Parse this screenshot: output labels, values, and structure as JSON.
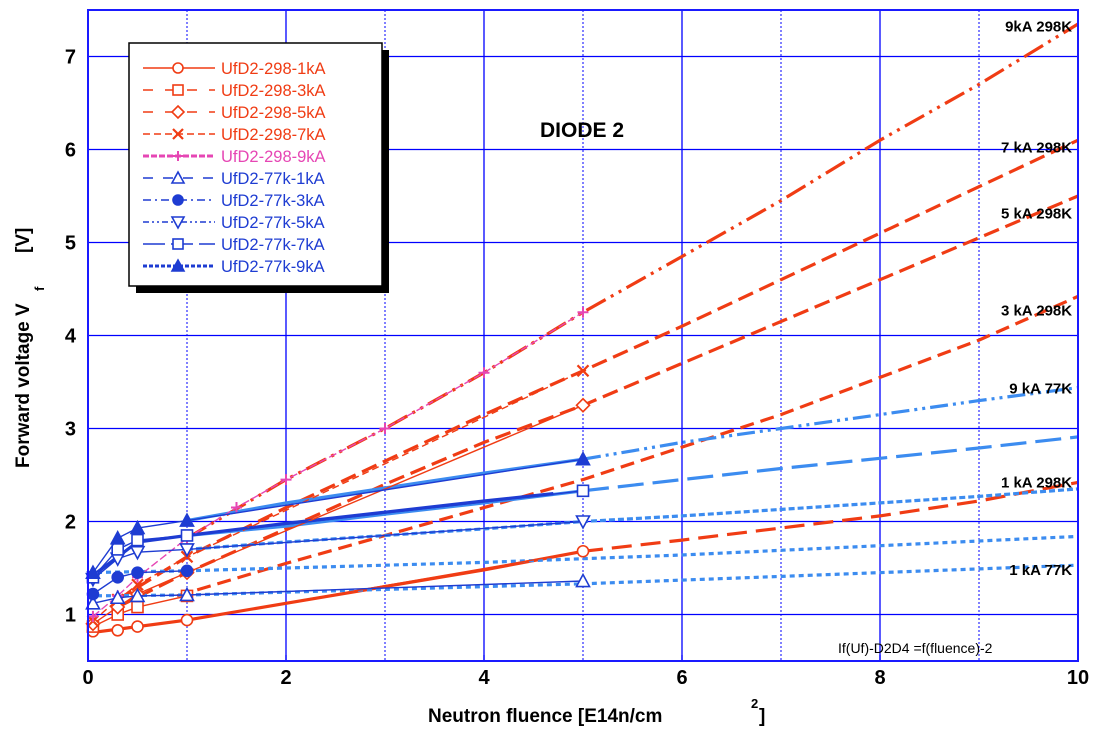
{
  "chart_data": {
    "type": "line",
    "title": "DIODE  2",
    "xlabel": "Neutron fluence [E14n/cm",
    "xlabel_sup": "2",
    "xlabel_end": "]",
    "ylabel": "Forward voltage V",
    "ylabel_sub": "f",
    "ylabel_end": "[V]",
    "xlim": [
      0,
      10
    ],
    "ylim": [
      0.5,
      7.5
    ],
    "grid": true,
    "legend_position": "top-left",
    "xticks": [
      "0",
      "2",
      "4",
      "6",
      "8",
      "10"
    ],
    "yticks": [
      "1",
      "2",
      "3",
      "4",
      "5",
      "6",
      "7"
    ],
    "note": "If(Uf)-D2D4 =f(fluence)-2",
    "colors": {
      "red": "#f03c14",
      "blue": "#1e3cd2",
      "light_blue": "#3c8cf0",
      "pink": "#e646b4",
      "grid": "#0000ff"
    },
    "annotations": [
      {
        "text": "9kA  298K",
        "x": 9.9,
        "y": 7.32
      },
      {
        "text": "7  kA  298K",
        "x": 9.9,
        "y": 6.02
      },
      {
        "text": "5  kA  298K",
        "x": 9.9,
        "y": 5.31
      },
      {
        "text": "3  kA  298K",
        "x": 9.9,
        "y": 4.27
      },
      {
        "text": "9  kA  77K",
        "x": 9.9,
        "y": 3.43
      },
      {
        "text": "1  kA  298K",
        "x": 9.9,
        "y": 2.42
      },
      {
        "text": "1  kA  77K",
        "x": 9.9,
        "y": 1.48
      }
    ],
    "series": [
      {
        "name": "UfD2-298-1kA",
        "color": "#f03c14",
        "marker": "circle",
        "fill": false,
        "dash": "",
        "legend_dash": "",
        "x": [
          0.05,
          0.3,
          0.5,
          1.0,
          5.0
        ],
        "y": [
          0.82,
          0.83,
          0.87,
          0.94,
          1.68
        ]
      },
      {
        "name": "UfD2-298-3kA",
        "color": "#f03c14",
        "marker": "square",
        "fill": false,
        "dash": "",
        "legend_dash": "10,12",
        "x": [
          0.05,
          0.3,
          0.5,
          1.0
        ],
        "y": [
          0.87,
          1.0,
          1.08,
          1.2
        ]
      },
      {
        "name": "UfD2-298-5kA",
        "color": "#f03c14",
        "marker": "diamond",
        "fill": false,
        "dash": "",
        "legend_dash": "10,12",
        "x": [
          0.05,
          0.3,
          0.5,
          1.0,
          5.0
        ],
        "y": [
          0.9,
          1.08,
          1.22,
          1.45,
          3.25
        ]
      },
      {
        "name": "UfD2-298-7kA",
        "color": "#f03c14",
        "marker": "x",
        "fill": false,
        "dash": "7,4",
        "legend_dash": "7,4",
        "x": [
          0.05,
          0.3,
          0.5,
          1.0,
          5.0
        ],
        "y": [
          0.93,
          1.16,
          1.32,
          1.62,
          3.62
        ]
      },
      {
        "name": "UfD2-298-9kA",
        "color": "#e646b4",
        "marker": "plus",
        "fill": false,
        "dash": "8,3",
        "legend_dash": "6,2",
        "x": [
          0.05,
          0.3,
          0.5,
          1.0,
          1.5,
          2.0,
          3.0,
          4.0,
          5.0
        ],
        "y": [
          0.98,
          1.2,
          1.4,
          1.82,
          2.15,
          2.45,
          3.0,
          3.6,
          4.25
        ]
      },
      {
        "name": "UfD2-77k-1kA",
        "color": "#1e3cd2",
        "marker": "triangle",
        "fill": false,
        "dash": "",
        "legend_dash": "10,10",
        "x": [
          0.05,
          0.3,
          0.5,
          1.0,
          5.0
        ],
        "y": [
          1.12,
          1.18,
          1.2,
          1.21,
          1.36
        ]
      },
      {
        "name": "UfD2-77k-3kA",
        "color": "#1e3cd2",
        "marker": "circle",
        "fill": true,
        "dash": "",
        "legend_dash": "8,4,2,4",
        "x": [
          0.05,
          0.3,
          0.5,
          1.0
        ],
        "y": [
          1.22,
          1.4,
          1.45,
          1.47
        ]
      },
      {
        "name": "UfD2-77k-5kA",
        "color": "#1e3cd2",
        "marker": "triangle-down",
        "fill": false,
        "dash": "",
        "legend_dash": "6,3,2,3,2,3",
        "x": [
          0.05,
          0.3,
          0.5,
          1.0,
          5.0
        ],
        "y": [
          1.38,
          1.6,
          1.67,
          1.7,
          2.0
        ]
      },
      {
        "name": "UfD2-77k-7kA",
        "color": "#1e3cd2",
        "marker": "square",
        "fill": false,
        "dash": "",
        "legend_dash": "22,6",
        "x": [
          0.05,
          0.3,
          0.5,
          1.0,
          5.0
        ],
        "y": [
          1.4,
          1.7,
          1.8,
          1.85,
          2.33
        ]
      },
      {
        "name": "UfD2-77k-9kA",
        "color": "#1e3cd2",
        "marker": "triangle",
        "fill": true,
        "dash": "",
        "legend_dash": "4,2",
        "x": [
          0.05,
          0.3,
          0.5,
          1.0,
          5.0
        ],
        "y": [
          1.45,
          1.82,
          1.93,
          2.01,
          2.67
        ]
      }
    ],
    "fits": [
      {
        "color": "#f03c14",
        "dash": "",
        "x": [
          0.0,
          1.0,
          2.0,
          3.0,
          4.0,
          5.0
        ],
        "y": [
          0.8,
          0.94,
          1.12,
          1.3,
          1.48,
          1.68
        ]
      },
      {
        "color": "#f03c14",
        "dash": "20,9",
        "x": [
          5.0,
          6.0,
          7.0,
          8.0,
          9.0,
          10.0
        ],
        "y": [
          1.68,
          1.8,
          1.93,
          2.06,
          2.22,
          2.42
        ]
      },
      {
        "color": "#f03c14",
        "dash": "14,7",
        "x": [
          0.9,
          2.0,
          3.0,
          4.0,
          5.0,
          6.0,
          7.0,
          8.0,
          9.0,
          10.0
        ],
        "y": [
          1.2,
          1.55,
          1.85,
          2.15,
          2.45,
          2.8,
          3.15,
          3.55,
          3.95,
          4.42
        ]
      },
      {
        "color": "#f03c14",
        "dash": "16,7",
        "x": [
          0.3,
          1.0,
          2.0,
          3.0,
          4.0,
          5.0,
          6.0,
          7.0,
          8.0,
          9.0,
          10.0
        ],
        "y": [
          1.08,
          1.45,
          1.92,
          2.4,
          2.85,
          3.25,
          3.7,
          4.15,
          4.6,
          5.05,
          5.5
        ]
      },
      {
        "color": "#f03c14",
        "dash": "16,7",
        "x": [
          0.3,
          1.0,
          2.0,
          3.0,
          4.0,
          5.0,
          6.0,
          7.0,
          8.0,
          9.0,
          10.0
        ],
        "y": [
          1.16,
          1.62,
          2.15,
          2.65,
          3.15,
          3.62,
          4.1,
          4.6,
          5.1,
          5.6,
          6.1
        ]
      },
      {
        "color": "#f03c14",
        "dash": "22,6,3,6,3,6",
        "x": [
          1.0,
          2.0,
          3.0,
          4.0,
          5.0,
          6.0,
          7.0,
          8.0,
          9.0,
          10.0
        ],
        "y": [
          1.82,
          2.45,
          3.0,
          3.6,
          4.25,
          4.85,
          5.45,
          6.1,
          6.7,
          7.35
        ]
      },
      {
        "color": "#3c8cf0",
        "dash": "5,4",
        "x": [
          0.0,
          1.0,
          2.0,
          3.0,
          4.0,
          5.0,
          6.0,
          7.0,
          8.0,
          9.0,
          10.0
        ],
        "y": [
          1.2,
          1.21,
          1.24,
          1.27,
          1.3,
          1.33,
          1.37,
          1.41,
          1.45,
          1.49,
          1.53
        ]
      },
      {
        "color": "#3c8cf0",
        "dash": "5,4",
        "x": [
          0.0,
          1.0,
          2.0,
          3.0,
          4.0,
          5.0,
          6.0,
          7.0,
          8.0,
          9.0,
          10.0
        ],
        "y": [
          1.45,
          1.47,
          1.5,
          1.53,
          1.56,
          1.6,
          1.64,
          1.69,
          1.74,
          1.79,
          1.84
        ]
      },
      {
        "color": "#3c8cf0",
        "dash": "6,3",
        "x": [
          1.0,
          2.0,
          3.0,
          4.0,
          5.0,
          6.0,
          7.0,
          8.0,
          9.0,
          10.0
        ],
        "y": [
          1.7,
          1.78,
          1.85,
          1.92,
          2.0,
          2.06,
          2.13,
          2.2,
          2.27,
          2.35
        ]
      },
      {
        "color": "#3c8cf0",
        "dash": "",
        "x": [
          1.0,
          2.0,
          3.0,
          4.0,
          5.0
        ],
        "y": [
          1.85,
          1.95,
          2.08,
          2.2,
          2.33
        ]
      },
      {
        "color": "#3c8cf0",
        "dash": "26,9",
        "x": [
          5.0,
          6.0,
          7.0,
          8.0,
          9.0,
          10.0
        ],
        "y": [
          2.33,
          2.45,
          2.57,
          2.68,
          2.79,
          2.91
        ]
      },
      {
        "color": "#3c8cf0",
        "dash": "",
        "x": [
          1.0,
          2.0,
          3.0,
          4.0,
          5.0
        ],
        "y": [
          2.01,
          2.2,
          2.36,
          2.52,
          2.67
        ]
      },
      {
        "color": "#3c8cf0",
        "dash": "18,5,3,5,3,5",
        "x": [
          5.0,
          6.0,
          7.0,
          8.0,
          9.0,
          10.0
        ],
        "y": [
          2.67,
          2.85,
          3.0,
          3.15,
          3.3,
          3.44
        ]
      },
      {
        "color": "#1e3cd2",
        "dash": "",
        "x": [
          0.0,
          0.5,
          1.0,
          2.0,
          3.0,
          4.0,
          4.7
        ],
        "y": [
          1.38,
          1.78,
          1.85,
          1.98,
          2.1,
          2.22,
          2.3
        ]
      }
    ]
  }
}
